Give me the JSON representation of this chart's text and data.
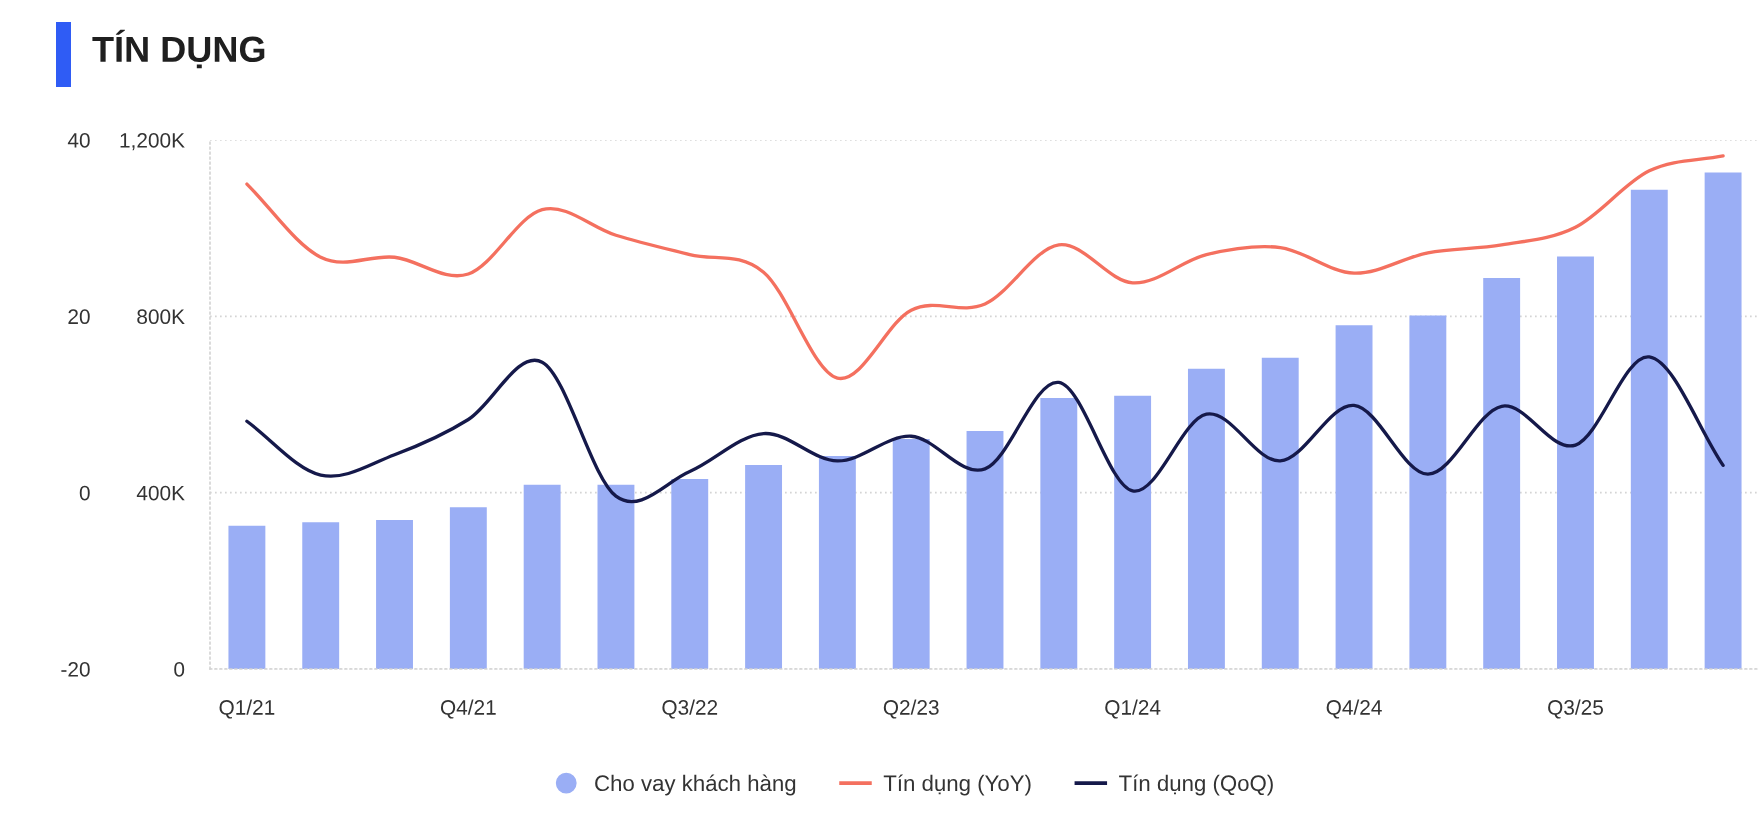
{
  "chart_data": {
    "type": "bar",
    "title": "TÍN DỤNG",
    "categories": [
      "Q1/21",
      null,
      null,
      "Q4/21",
      null,
      null,
      "Q3/22",
      null,
      null,
      "Q2/23",
      null,
      null,
      "Q1/24",
      null,
      null,
      "Q4/24",
      null,
      null,
      "Q3/25",
      null,
      null
    ],
    "series": [
      {
        "name": "Cho vay khách hàng",
        "color": "#9aaef5",
        "values": [
          325000,
          333000,
          338000,
          367000,
          418000,
          418000,
          431000,
          463000,
          483000,
          522000,
          540000,
          615000,
          620000,
          681000,
          706000,
          780000,
          802000,
          887000,
          936000,
          1087000,
          1126000
        ]
      },
      {
        "name": "Tín dụng (YoY)",
        "type": "line",
        "axis": "y2",
        "color": "#f4705f",
        "values": [
          35.0,
          26.7,
          26.7,
          24.8,
          32.1,
          29.2,
          27.0,
          25.0,
          13.0,
          20.7,
          21.4,
          28.1,
          23.8,
          27.0,
          27.8,
          24.9,
          27.2,
          28.1,
          30.1,
          36.5,
          38.2
        ]
      },
      {
        "name": "Tín dụng (QoQ)",
        "type": "line",
        "axis": "y2",
        "color": "#15194a",
        "values": [
          8.1,
          2.0,
          4.3,
          8.3,
          14.8,
          -0.4,
          2.4,
          6.7,
          3.6,
          6.4,
          2.7,
          12.5,
          0.2,
          8.9,
          3.6,
          9.9,
          2.1,
          9.8,
          5.4,
          15.4,
          3.1
        ]
      }
    ],
    "ylim": [
      0,
      1200000
    ],
    "yticks": [
      0,
      {
        "value": 400000,
        "label": "400K"
      },
      {
        "value": 800000,
        "label": "800K"
      },
      {
        "value": 1200000,
        "label": "1,200K"
      }
    ],
    "y2lim": [
      -20,
      40
    ],
    "y2ticks": [
      -20,
      0,
      20,
      40
    ],
    "grid": "y",
    "legend": "bottom",
    "line_style": "solid"
  }
}
